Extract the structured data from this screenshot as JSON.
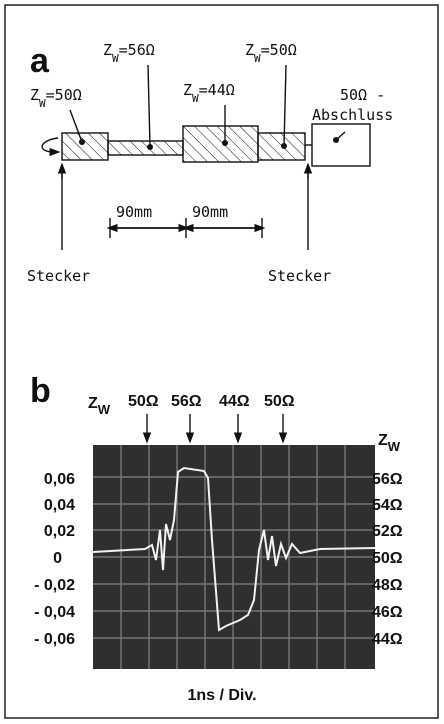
{
  "panel_a": {
    "label": "a",
    "impedances": [
      {
        "symbol": "Z",
        "subscript": "W",
        "value": "=50Ω"
      },
      {
        "symbol": "Z",
        "subscript": "W",
        "value": "=56Ω"
      },
      {
        "symbol": "Z",
        "subscript": "W",
        "value": "=44Ω"
      },
      {
        "symbol": "Z",
        "subscript": "W",
        "value": "=50Ω"
      }
    ],
    "termination": [
      "50Ω -",
      "Abschluss"
    ],
    "dimensions": [
      "90mm",
      "90mm"
    ],
    "connectors": [
      "Stecker",
      "Stecker"
    ]
  },
  "panel_b": {
    "label": "b",
    "top_symbol": {
      "symbol": "Z",
      "subscript": "W"
    },
    "top_markers": [
      "50Ω",
      "56Ω",
      "44Ω",
      "50Ω"
    ],
    "right_symbol": {
      "symbol": "Z",
      "subscript": "W"
    },
    "left_scale": [
      "0,06",
      "0,04",
      "0,02",
      "0",
      "- 0,02",
      "- 0,04",
      "- 0,06"
    ],
    "right_scale": [
      "56Ω",
      "54Ω",
      "52Ω",
      "50Ω",
      "48Ω",
      "46Ω",
      "44Ω"
    ],
    "time_base": "1ns / Div."
  }
}
